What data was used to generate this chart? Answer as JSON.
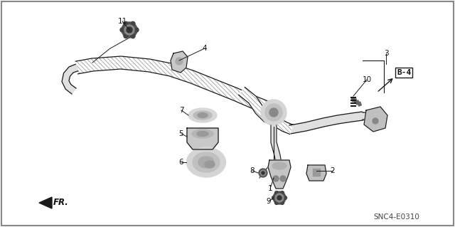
{
  "bg_color": "#ffffff",
  "border_color": "#aaaaaa",
  "code": "SNC4-E0310",
  "line_color": "#1a1a1a",
  "text_color": "#111111",
  "fig_w": 6.4,
  "fig_h": 3.19,
  "dpi": 100
}
